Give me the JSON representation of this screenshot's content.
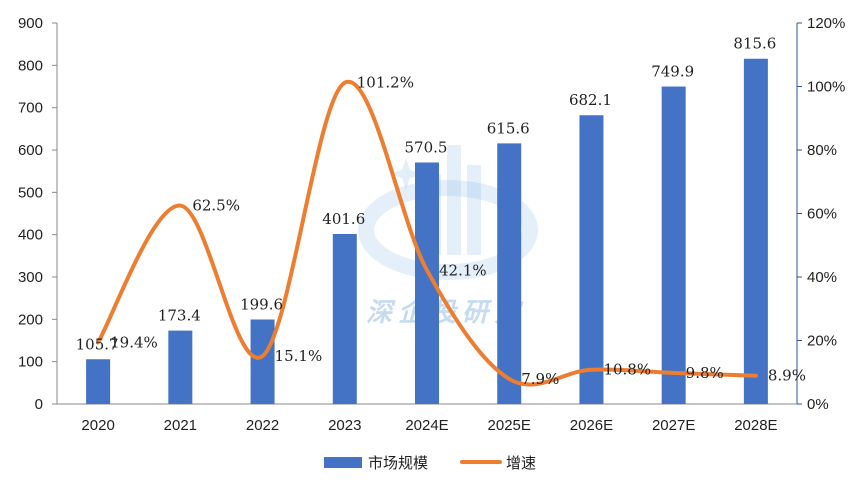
{
  "chart_data": {
    "type": "bar+line",
    "categories": [
      "2020",
      "2021",
      "2022",
      "2023",
      "2024E",
      "2025E",
      "2026E",
      "2027E",
      "2028E"
    ],
    "series": [
      {
        "name": "市场规模",
        "type": "bar",
        "axis": "left",
        "color": "#4472c4",
        "values": [
          105.7,
          173.4,
          199.6,
          401.6,
          570.5,
          615.6,
          682.1,
          749.9,
          815.6
        ],
        "labels": [
          "105.7",
          "173.4",
          "199.6",
          "401.6",
          "570.5",
          "615.6",
          "682.1",
          "749.9",
          "815.6"
        ]
      },
      {
        "name": "增速",
        "type": "line",
        "axis": "right",
        "color": "#ed7d31",
        "values": [
          19.4,
          62.5,
          15.1,
          101.2,
          42.1,
          7.9,
          10.8,
          9.8,
          8.9
        ],
        "labels": [
          "19.4%",
          "62.5%",
          "15.1%",
          "101.2%",
          "42.1%",
          "7.9%",
          "10.8%",
          "9.8%",
          "8.9%"
        ]
      }
    ],
    "y_left": {
      "range": [
        0,
        900
      ],
      "ticks": [
        0,
        100,
        200,
        300,
        400,
        500,
        600,
        700,
        800,
        900
      ],
      "tick_labels": [
        "0",
        "100",
        "200",
        "300",
        "400",
        "500",
        "600",
        "700",
        "800",
        "900"
      ]
    },
    "y_right": {
      "range": [
        0,
        120
      ],
      "ticks": [
        0,
        20,
        40,
        60,
        80,
        100,
        120
      ],
      "tick_labels": [
        "0%",
        "20%",
        "40%",
        "60%",
        "80%",
        "100%",
        "120%"
      ]
    },
    "legend": {
      "position": "bottom",
      "entries": [
        "市场规模",
        "增速"
      ]
    },
    "grid": false,
    "watermark": "深企投研究"
  }
}
